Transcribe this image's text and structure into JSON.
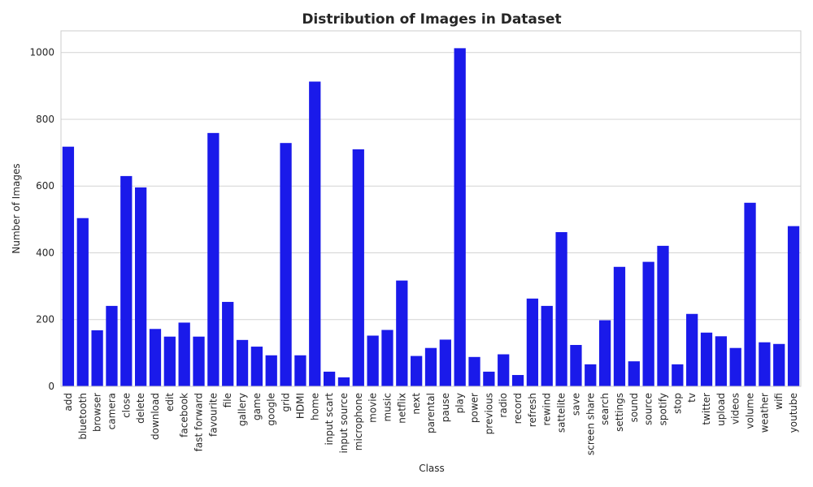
{
  "chart_data": {
    "type": "bar",
    "title": "Distribution of Images in Dataset",
    "xlabel": "Class",
    "ylabel": "Number of Images",
    "ylim": [
      0,
      1065
    ],
    "yticks": [
      0,
      200,
      400,
      600,
      800,
      1000
    ],
    "grid": "horizontal",
    "bar_color": "#1a1aea",
    "grid_color": "#d4d4d4",
    "axes_edge_color": "#cccccc",
    "categories": [
      "add",
      "bluetooth",
      "browser",
      "camera",
      "close",
      "delete",
      "download",
      "edit",
      "facebook",
      "fast forward",
      "favourite",
      "file",
      "gallery",
      "game",
      "google",
      "grid",
      "HDMI",
      "home",
      "input scart",
      "input source",
      "microphone",
      "movie",
      "music",
      "netflix",
      "next",
      "parental",
      "pause",
      "play",
      "power",
      "previous",
      "radio",
      "record",
      "refresh",
      "rewind",
      "sattelite",
      "save",
      "screen share",
      "search",
      "settings",
      "sound",
      "source",
      "spotify",
      "stop",
      "tv",
      "twitter",
      "upload",
      "videos",
      "volume",
      "weather",
      "wifi",
      "youtube"
    ],
    "values": [
      718,
      504,
      168,
      241,
      630,
      596,
      172,
      149,
      191,
      149,
      759,
      253,
      139,
      119,
      93,
      729,
      93,
      913,
      44,
      27,
      710,
      152,
      169,
      317,
      91,
      115,
      140,
      1013,
      88,
      44,
      96,
      34,
      263,
      241,
      462,
      124,
      66,
      198,
      358,
      75,
      373,
      421,
      66,
      217,
      161,
      150,
      115,
      550,
      132,
      127,
      480
    ]
  }
}
